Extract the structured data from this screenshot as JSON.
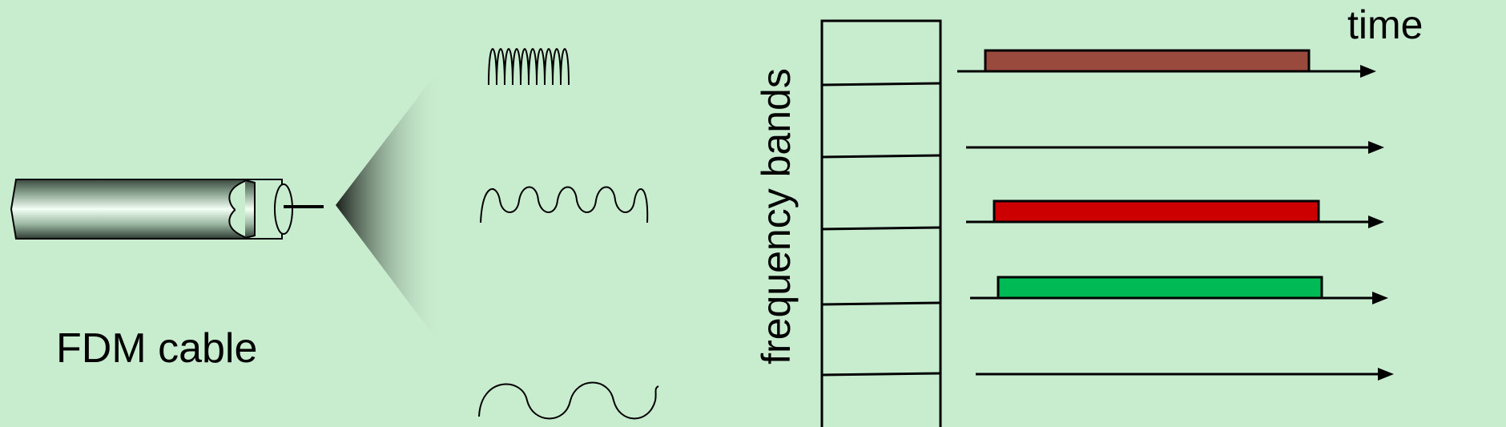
{
  "cable": {
    "label": "FDM cable"
  },
  "axes": {
    "y_label": "frequency bands",
    "x_label": "time"
  },
  "bands": [
    {
      "occupied": true,
      "color": "#9a4a3c"
    },
    {
      "occupied": false
    },
    {
      "occupied": true,
      "color": "#cc0000"
    },
    {
      "occupied": true,
      "color": "#00bb55"
    },
    {
      "occupied": false
    }
  ],
  "waveforms": [
    {
      "name": "high-frequency-waveform"
    },
    {
      "name": "medium-frequency-waveform"
    },
    {
      "name": "low-frequency-waveform"
    }
  ],
  "colors": {
    "background": "#c8ecce",
    "stroke": "#000000"
  }
}
